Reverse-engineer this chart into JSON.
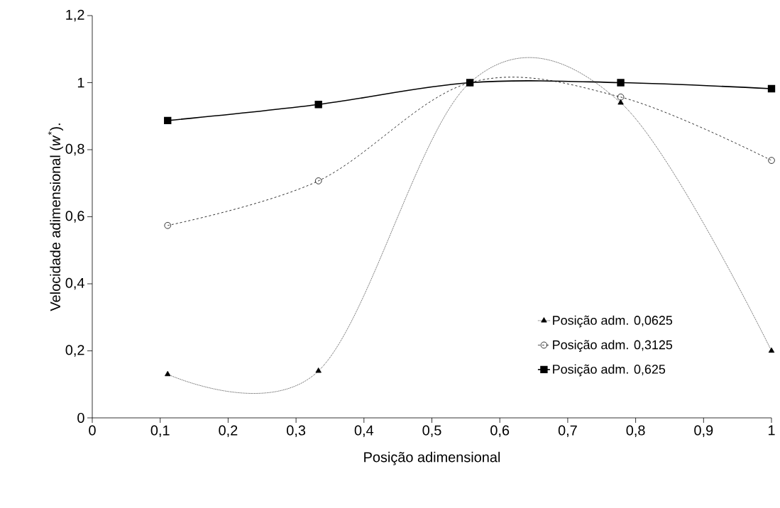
{
  "chart_data": {
    "type": "line",
    "xlabel": "Posição adimensional",
    "ylabel": "Velocidade adimensional (*w*$^{*}$).",
    "x": [
      0.111,
      0.333,
      0.556,
      0.778,
      1
    ],
    "series": [
      {
        "name": "Posição adm. 0,0625",
        "color": "#000000",
        "marker": "triangle",
        "line_style": "dotted",
        "values": [
          0.13,
          0.14,
          1.0,
          0.94,
          0.2
        ]
      },
      {
        "name": "Posição adm. 0,3125",
        "color": "#000000",
        "marker": "circle",
        "line_style": "dashed",
        "values": [
          0.574,
          0.707,
          1.0,
          0.957,
          0.768
        ]
      },
      {
        "name": "Posição adm. 0,625",
        "color": "#000000",
        "marker": "square",
        "line_style": "solid",
        "values": [
          0.887,
          0.935,
          1.0,
          1.0,
          0.982
        ]
      }
    ],
    "xlim": [
      0,
      1
    ],
    "ylim": [
      0,
      1.2
    ],
    "xticks": [
      0,
      {
        "value": 0.1,
        "label": "0,1"
      },
      {
        "value": 0.2,
        "label": "0,2"
      },
      {
        "value": 0.3,
        "label": "0,3"
      },
      {
        "value": 0.4,
        "label": "0,4"
      },
      {
        "value": 0.5,
        "label": "0,5"
      },
      {
        "value": 0.6,
        "label": "0,6"
      },
      {
        "value": 0.7,
        "label": "0,7"
      },
      {
        "value": 0.8,
        "label": "0,8"
      },
      {
        "value": 0.9,
        "label": "0,9"
      },
      1
    ],
    "yticks": [
      0,
      {
        "value": 0.2,
        "label": "0,2"
      },
      {
        "value": 0.4,
        "label": "0,4"
      },
      {
        "value": 0.6,
        "label": "0,6"
      },
      {
        "value": 0.8,
        "label": "0,8"
      },
      1,
      {
        "value": 1.2,
        "label": "1,2"
      }
    ],
    "legend": "bottom right"
  }
}
